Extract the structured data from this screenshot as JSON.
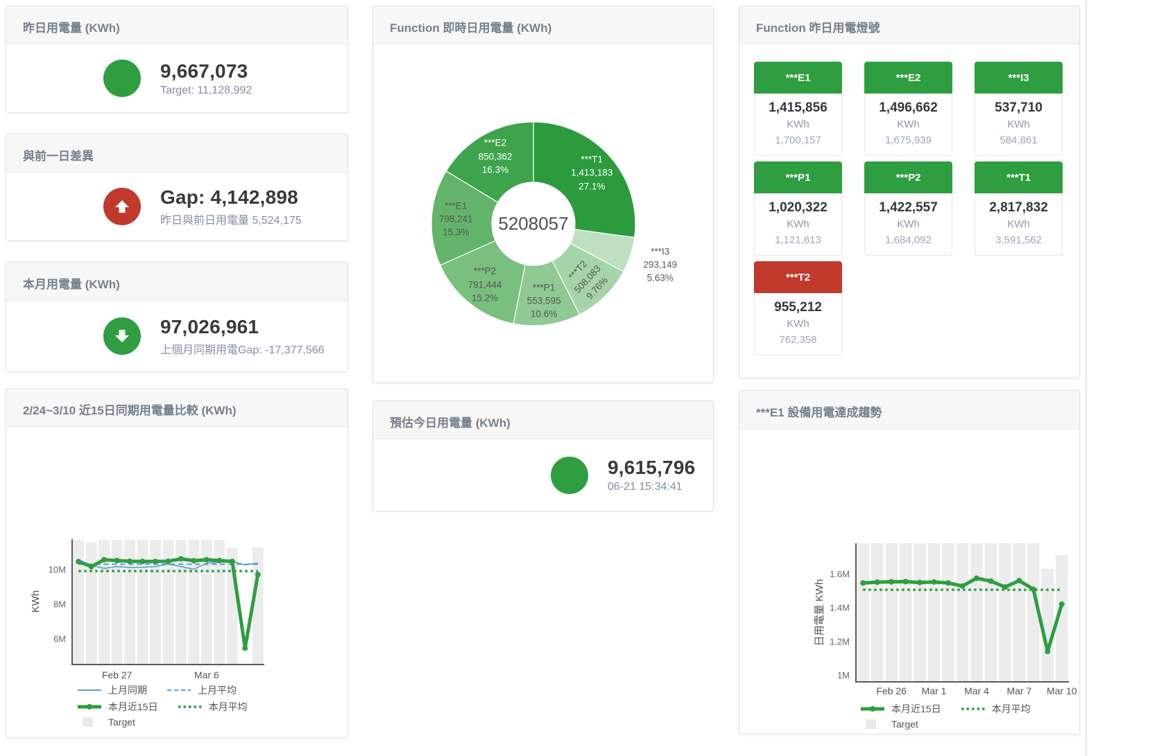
{
  "colors": {
    "green": "#2e9e40",
    "red": "#c0392b",
    "bar_grey": "#ececec",
    "blue": "#5b9bd5"
  },
  "cards": {
    "yesterday": {
      "title": "昨日用電量 (KWh)",
      "value": "9,667,073",
      "subtitle": "Target: 11,128,992"
    },
    "diff_prev_day": {
      "title": "與前一日差異",
      "value": "Gap: 4,142,898",
      "subtitle": "昨日與前日用電量 5,524,175"
    },
    "month": {
      "title": "本月用電量 (KWh)",
      "value": "97,026,961",
      "subtitle": "上個月同期用電Gap: -17,377,566"
    },
    "realtime": {
      "title": "Function 即時日用電量 (KWh)"
    },
    "estimate": {
      "title": "預估今日用電量 (KWh)",
      "value": "9,615,796",
      "subtitle": "06-21 15:34:41"
    },
    "compare": {
      "title": "2/24~3/10 近15日同期用電量比較 (KWh)"
    },
    "lights": {
      "title": "Function 昨日用電燈號",
      "tiles": [
        {
          "label": "***E1",
          "value": "1,415,856",
          "unit": "KWh",
          "target": "1,700,157",
          "status": "green"
        },
        {
          "label": "***E2",
          "value": "1,496,662",
          "unit": "KWh",
          "target": "1,675,939",
          "status": "green"
        },
        {
          "label": "***I3",
          "value": "537,710",
          "unit": "KWh",
          "target": "584,861",
          "status": "green"
        },
        {
          "label": "***P1",
          "value": "1,020,322",
          "unit": "KWh",
          "target": "1,121,613",
          "status": "green"
        },
        {
          "label": "***P2",
          "value": "1,422,557",
          "unit": "KWh",
          "target": "1,684,092",
          "status": "green"
        },
        {
          "label": "***T1",
          "value": "2,817,832",
          "unit": "KWh",
          "target": "3,591,562",
          "status": "green"
        },
        {
          "label": "***T2",
          "value": "955,212",
          "unit": "KWh",
          "target": "762,358",
          "status": "red"
        }
      ]
    },
    "trend": {
      "title": "***E1 設備用電達成趨勢"
    }
  },
  "chart_data": [
    {
      "id": "realtime_donut",
      "type": "pie",
      "title": "Function 即時日用電量 (KWh)",
      "center_label": "5208057",
      "slices": [
        {
          "name": "***T1",
          "value": 1413183,
          "value_label": "1,413,183",
          "pct": "27.1%",
          "color": "#2b9b3e",
          "text": "#ffffff"
        },
        {
          "name": "***I3",
          "value": 293149,
          "value_label": "293,149",
          "pct": "5.63%",
          "color": "#bfdfc1",
          "text": "#575757",
          "outside": true
        },
        {
          "name": "***T2",
          "value": 508083,
          "value_label": "508,083",
          "pct": "9.76%",
          "color": "#a6d4a9",
          "text": "#575757",
          "rotate": -47
        },
        {
          "name": "***P1",
          "value": 553595,
          "value_label": "553,595",
          "pct": "10.6%",
          "color": "#8fc993",
          "text": "#575757"
        },
        {
          "name": "***P2",
          "value": 791444,
          "value_label": "791,444",
          "pct": "15.2%",
          "color": "#79bf7e",
          "text": "#575757"
        },
        {
          "name": "***E1",
          "value": 798241,
          "value_label": "798,241",
          "pct": "15.3%",
          "color": "#62b46a",
          "text": "#575757"
        },
        {
          "name": "***E2",
          "value": 850362,
          "value_label": "850,362",
          "pct": "16.3%",
          "color": "#3da44b",
          "text": "#ffffff"
        }
      ]
    },
    {
      "id": "compare15",
      "type": "line",
      "title": "2/24~3/10 近15日同期用電量比較 (KWh)",
      "ylabel": "KWh",
      "ylim": [
        4500000,
        11750000
      ],
      "yticks": [
        {
          "v": 6000000,
          "t": "6M"
        },
        {
          "v": 8000000,
          "t": "8M"
        },
        {
          "v": 10000000,
          "t": "10M"
        }
      ],
      "xticks": [
        {
          "i": 3,
          "t": "Feb 27"
        },
        {
          "i": 10,
          "t": "Mar 6"
        }
      ],
      "bars": {
        "name": "Target",
        "color": "#ececec",
        "values": [
          11700000,
          11560000,
          11700000,
          11700000,
          11700000,
          11700000,
          11700000,
          11700000,
          11700000,
          11700000,
          11700000,
          11700000,
          11230000,
          null,
          11270000
        ]
      },
      "series": [
        {
          "name": "上月同期",
          "color": "#5b9bd5",
          "width": 1.6,
          "dash": "solid",
          "values": [
            10560000,
            10230000,
            10060000,
            10160000,
            10110000,
            10120000,
            10160000,
            10310000,
            10160000,
            10010000,
            10360000,
            10410000,
            10460000,
            10260000,
            10360000
          ]
        },
        {
          "name": "上月平均",
          "color": "#5b9bd5",
          "width": 2,
          "dash": "dash",
          "value": 10300000
        },
        {
          "name": "本月平均",
          "color": "#2e9e40",
          "width": 3.5,
          "dash": "dot",
          "value": 9900000
        },
        {
          "name": "本月近15日",
          "color": "#2e9e40",
          "width": 5,
          "dash": "solid",
          "marker": true,
          "values": [
            10450000,
            10160000,
            10560000,
            10510000,
            10470000,
            10460000,
            10460000,
            10470000,
            10610000,
            10500000,
            10560000,
            10510000,
            10460000,
            5450000,
            9700000
          ]
        }
      ],
      "legend_rows": [
        [
          {
            "t": "上月同期",
            "marker": "line",
            "color": "#5b9bd5"
          },
          {
            "t": "上月平均",
            "marker": "dash",
            "color": "#5b9bd5"
          }
        ],
        [
          {
            "t": "本月近15日",
            "marker": "thickline",
            "color": "#2e9e40"
          },
          {
            "t": "本月平均",
            "marker": "dot",
            "color": "#2e9e40"
          }
        ],
        [
          {
            "t": "Target",
            "marker": "square",
            "color": "#e9e9e9"
          }
        ]
      ]
    },
    {
      "id": "e1_trend",
      "type": "line",
      "title": "***E1 設備用電達成趨勢",
      "ylabel": "日用電量 KWh",
      "ylim": [
        960000,
        1780000
      ],
      "yticks": [
        {
          "v": 1000000,
          "t": "1M"
        },
        {
          "v": 1200000,
          "t": "1.2M"
        },
        {
          "v": 1400000,
          "t": "1.4M"
        },
        {
          "v": 1600000,
          "t": "1.6M"
        }
      ],
      "xticks": [
        {
          "i": 2,
          "t": "Feb 26"
        },
        {
          "i": 5,
          "t": "Mar 1"
        },
        {
          "i": 8,
          "t": "Mar 4"
        },
        {
          "i": 11,
          "t": "Mar 7"
        },
        {
          "i": 14,
          "t": "Mar 10"
        }
      ],
      "bars": {
        "name": "Target",
        "color": "#ececec",
        "values": [
          1780000,
          1780000,
          1780000,
          1780000,
          1780000,
          1780000,
          1780000,
          1780000,
          1780000,
          1780000,
          1780000,
          1780000,
          1780000,
          1630000,
          1710000
        ]
      },
      "series": [
        {
          "name": "本月平均",
          "color": "#2e9e40",
          "width": 3.5,
          "dash": "dot",
          "value": 1505000
        },
        {
          "name": "本月近15日",
          "color": "#2e9e40",
          "width": 5,
          "dash": "solid",
          "marker": true,
          "values": [
            1545000,
            1550000,
            1552000,
            1553000,
            1548000,
            1551000,
            1545000,
            1527000,
            1573000,
            1556000,
            1521000,
            1559000,
            1508000,
            1140000,
            1420000
          ]
        }
      ],
      "legend_rows": [
        [
          {
            "t": "本月近15日",
            "marker": "thickline",
            "color": "#2e9e40"
          },
          {
            "t": "本月平均",
            "marker": "dot",
            "color": "#2e9e40"
          }
        ],
        [
          {
            "t": "Target",
            "marker": "square",
            "color": "#e9e9e9"
          }
        ]
      ]
    }
  ]
}
